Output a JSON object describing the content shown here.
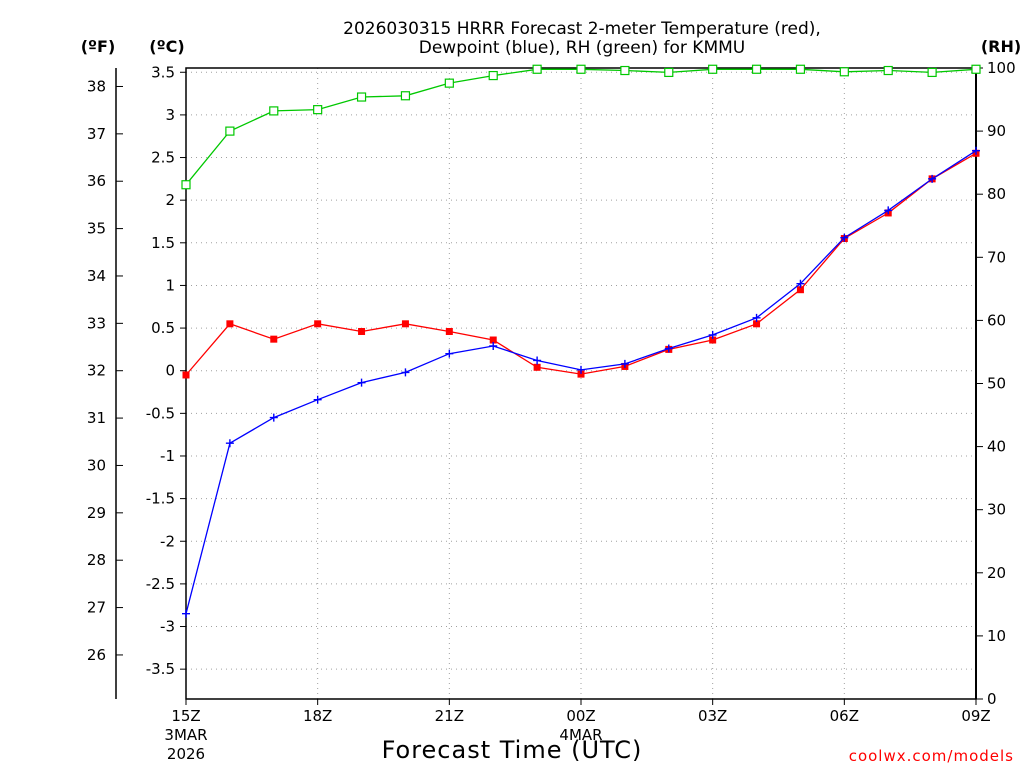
{
  "chart_data": {
    "type": "line",
    "title_line1": "2026030315 HRRR Forecast 2-meter Temperature (red),",
    "title_line2": "Dewpoint (blue), RH (green) for KMMU",
    "left_axis_f": {
      "label": "(ºF)",
      "ticks": [
        26,
        27,
        28,
        29,
        30,
        31,
        32,
        33,
        34,
        35,
        36,
        37,
        38
      ]
    },
    "left_axis_c": {
      "label": "(ºC)",
      "ticks": [
        "-3.5",
        "-3",
        "-2.5",
        "-2",
        "-1.5",
        "-1",
        "-0.5",
        "0",
        "0.5",
        "1",
        "1.5",
        "2",
        "2.5",
        "3",
        "3.5"
      ],
      "ylim": [
        -3.85,
        3.55
      ]
    },
    "right_axis_rh": {
      "label": "(RH)",
      "ticks": [
        0,
        10,
        20,
        30,
        40,
        50,
        60,
        70,
        80,
        90,
        100
      ],
      "ylim": [
        0,
        100
      ]
    },
    "xlabel": "Forecast Time (UTC)",
    "x_hours": [
      0,
      1,
      2,
      3,
      4,
      5,
      6,
      7,
      8,
      9,
      10,
      11,
      12,
      13,
      14,
      15,
      16,
      17,
      18
    ],
    "x_ticks": [
      {
        "hour": 0,
        "label": "15Z",
        "sub1": "3MAR",
        "sub2": "2026"
      },
      {
        "hour": 3,
        "label": "18Z"
      },
      {
        "hour": 6,
        "label": "21Z"
      },
      {
        "hour": 9,
        "label": "00Z",
        "sub1": "4MAR"
      },
      {
        "hour": 12,
        "label": "03Z"
      },
      {
        "hour": 15,
        "label": "06Z"
      },
      {
        "hour": 18,
        "label": "09Z"
      }
    ],
    "grid": true,
    "series": [
      {
        "name": "Temperature",
        "axis": "celsius",
        "color": "#ff0000",
        "marker": "filled-square",
        "values": [
          -0.05,
          0.55,
          0.37,
          0.55,
          0.46,
          0.55,
          0.46,
          0.36,
          0.04,
          -0.04,
          0.05,
          0.25,
          0.36,
          0.55,
          0.95,
          1.55,
          1.85,
          2.25,
          2.55
        ]
      },
      {
        "name": "Dewpoint",
        "axis": "celsius",
        "color": "#0000ff",
        "marker": "plus",
        "values": [
          -2.85,
          -0.85,
          -0.55,
          -0.34,
          -0.14,
          -0.02,
          0.2,
          0.29,
          0.12,
          0.01,
          0.08,
          0.26,
          0.42,
          0.62,
          1.02,
          1.56,
          1.88,
          2.25,
          2.58
        ]
      },
      {
        "name": "RH",
        "axis": "rh",
        "color": "#00c800",
        "marker": "open-square",
        "values": [
          81.5,
          90,
          93.2,
          93.4,
          95.4,
          95.6,
          97.6,
          98.8,
          99.8,
          99.8,
          99.6,
          99.3,
          99.8,
          99.8,
          99.8,
          99.4,
          99.6,
          99.3,
          99.8
        ]
      }
    ]
  },
  "credit": "coolwx.com/models"
}
